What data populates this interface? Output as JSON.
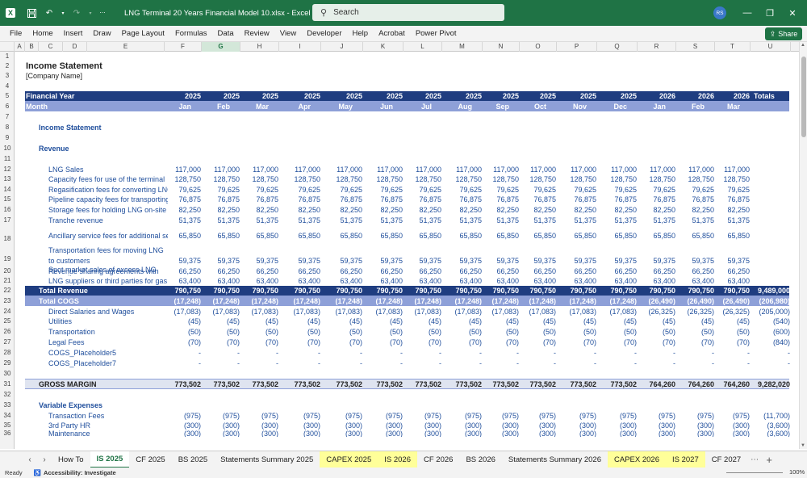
{
  "window": {
    "title": "LNG Terminal 20 Years Financial Model 10.xlsx  -  Excel",
    "search_placeholder": "Search",
    "user_initials": "RS"
  },
  "menu": [
    "File",
    "Home",
    "Insert",
    "Draw",
    "Page Layout",
    "Formulas",
    "Data",
    "Review",
    "View",
    "Developer",
    "Help",
    "Acrobat",
    "Power Pivot"
  ],
  "share_label": "Share",
  "columns": [
    "A",
    "B",
    "C",
    "D",
    "E",
    "F",
    "G",
    "H",
    "I",
    "J",
    "K",
    "L",
    "M",
    "N",
    "O",
    "P",
    "Q",
    "R",
    "S",
    "T",
    "U"
  ],
  "rows": [
    "1",
    "2",
    "3",
    "4",
    "5",
    "6",
    "7",
    "8",
    "9",
    "10",
    "11",
    "12",
    "13",
    "14",
    "15",
    "16",
    "17",
    "18",
    "19",
    "20",
    "21",
    "22",
    "23",
    "24",
    "25",
    "26",
    "27",
    "28",
    "29",
    "30",
    "31",
    "32",
    "33",
    "34",
    "35",
    "36"
  ],
  "sheet": {
    "title": "Income Statement",
    "company": "[Company Name]",
    "fy_label": "Financial Year",
    "month_label": "Month",
    "years": [
      "2025",
      "2025",
      "2025",
      "2025",
      "2025",
      "2025",
      "2025",
      "2025",
      "2025",
      "2025",
      "2025",
      "2025",
      "2026",
      "2026",
      "2026"
    ],
    "months": [
      "Jan",
      "Feb",
      "Mar",
      "Apr",
      "May",
      "Jun",
      "Jul",
      "Aug",
      "Sep",
      "Oct",
      "Nov",
      "Dec",
      "Jan",
      "Feb",
      "Mar"
    ],
    "totals_label": "Totals",
    "section_is": "Income Statement",
    "section_revenue": "Revenue",
    "revenue_lines": [
      {
        "label": "LNG Sales",
        "v": "117,000"
      },
      {
        "label": "Capacity fees for use of the terminal",
        "v": "128,750"
      },
      {
        "label": "Regasification fees for converting LNG",
        "v": "79,625"
      },
      {
        "label": "Pipeline capacity fees for transporting",
        "v": "76,875"
      },
      {
        "label": "Storage fees for holding LNG on-site",
        "v": "82,250"
      },
      {
        "label": "Tranche revenue",
        "v": "51,375"
      },
      {
        "label": "Ancillary service fees for additional ser",
        "v": "65,850"
      }
    ],
    "transport_label_1": "Transportation fees for moving LNG",
    "transport_label_2": "to customers",
    "transport_v": "59,375",
    "spot_label_1": "Spot market sales of excess LNG",
    "spot_label_2": "capacity",
    "spot_v": "66,250",
    "share_label_1": "Revenue sharing agreements with",
    "share_label_2": "LNG suppliers or third parties for gas",
    "share_v": "63,400",
    "total_revenue_label": "Total Revenue",
    "total_revenue_v": "790,750",
    "total_revenue_total": "9,489,000",
    "total_cogs_label": "Total COGS",
    "total_cogs_v": [
      "(17,248)",
      "(17,248)",
      "(17,248)",
      "(17,248)",
      "(17,248)",
      "(17,248)",
      "(17,248)",
      "(17,248)",
      "(17,248)",
      "(17,248)",
      "(17,248)",
      "(17,248)",
      "(26,490)",
      "(26,490)",
      "(26,490)"
    ],
    "total_cogs_total": "(206,980)",
    "cogs_lines": [
      {
        "label": "Direct Salaries and Wages",
        "v": [
          "(17,083)",
          "(17,083)",
          "(17,083)",
          "(17,083)",
          "(17,083)",
          "(17,083)",
          "(17,083)",
          "(17,083)",
          "(17,083)",
          "(17,083)",
          "(17,083)",
          "(17,083)",
          "(26,325)",
          "(26,325)",
          "(26,325)"
        ],
        "t": "(205,000)"
      },
      {
        "label": "Utilities",
        "v": [
          "(45)",
          "(45)",
          "(45)",
          "(45)",
          "(45)",
          "(45)",
          "(45)",
          "(45)",
          "(45)",
          "(45)",
          "(45)",
          "(45)",
          "(45)",
          "(45)",
          "(45)"
        ],
        "t": "(540)"
      },
      {
        "label": "Transportation",
        "v": [
          "(50)",
          "(50)",
          "(50)",
          "(50)",
          "(50)",
          "(50)",
          "(50)",
          "(50)",
          "(50)",
          "(50)",
          "(50)",
          "(50)",
          "(50)",
          "(50)",
          "(50)"
        ],
        "t": "(600)"
      },
      {
        "label": "Legal Fees",
        "v": [
          "(70)",
          "(70)",
          "(70)",
          "(70)",
          "(70)",
          "(70)",
          "(70)",
          "(70)",
          "(70)",
          "(70)",
          "(70)",
          "(70)",
          "(70)",
          "(70)",
          "(70)"
        ],
        "t": "(840)"
      },
      {
        "label": "COGS_Placeholder5",
        "v": [
          "-",
          "-",
          "-",
          "-",
          "-",
          "-",
          "-",
          "-",
          "-",
          "-",
          "-",
          "-",
          "-",
          "-",
          "-"
        ],
        "t": "-"
      },
      {
        "label": "COGS_Placeholder7",
        "v": [
          "-",
          "-",
          "-",
          "-",
          "-",
          "-",
          "-",
          "-",
          "-",
          "-",
          "-",
          "-",
          "-",
          "-",
          "-"
        ],
        "t": "-"
      }
    ],
    "gross_margin_label": "GROSS MARGIN",
    "gross_margin_v": [
      "773,502",
      "773,502",
      "773,502",
      "773,502",
      "773,502",
      "773,502",
      "773,502",
      "773,502",
      "773,502",
      "773,502",
      "773,502",
      "773,502",
      "764,260",
      "764,260",
      "764,260"
    ],
    "gross_margin_total": "9,282,020",
    "variable_label": "Variable Expenses",
    "var_lines": [
      {
        "label": "Transaction Fees",
        "v": "(975)",
        "t": "(11,700)"
      },
      {
        "label": "3rd Party HR",
        "v": "(300)",
        "t": "(3,600)"
      },
      {
        "label": "Maintenance",
        "v": "(300)",
        "t": "(3,600)"
      }
    ]
  },
  "tabs": [
    {
      "label": "How To",
      "style": "normal"
    },
    {
      "label": "IS 2025",
      "style": "active"
    },
    {
      "label": "CF 2025",
      "style": "normal"
    },
    {
      "label": "BS 2025",
      "style": "normal"
    },
    {
      "label": "Statements Summary 2025",
      "style": "normal"
    },
    {
      "label": "CAPEX 2025",
      "style": "yellow"
    },
    {
      "label": "IS 2026",
      "style": "yellow"
    },
    {
      "label": "CF 2026",
      "style": "normal"
    },
    {
      "label": "BS 2026",
      "style": "normal"
    },
    {
      "label": "Statements Summary 2026",
      "style": "normal"
    },
    {
      "label": "CAPEX 2026",
      "style": "yellow"
    },
    {
      "label": "IS 2027",
      "style": "yellow"
    },
    {
      "label": "CF 2027",
      "style": "normal"
    }
  ],
  "status": {
    "ready": "Ready",
    "accessibility": "Accessibility: Investigate",
    "zoom": "100%"
  }
}
